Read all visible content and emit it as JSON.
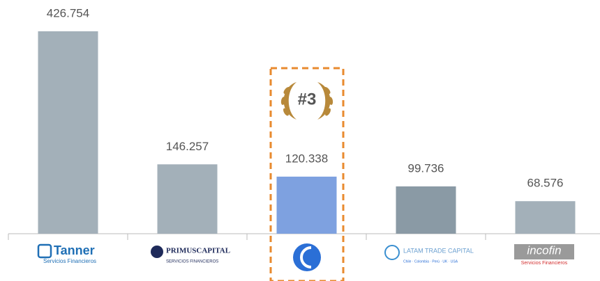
{
  "chart_data": {
    "type": "bar",
    "categories": [
      "Tanner",
      "PRIMUSCAPITAL",
      null,
      "LATAM TRADE CAPITAL",
      "incofin"
    ],
    "category_sublabels": [
      "Servicios Financieros",
      "SERVICIOS FINANCIEROS",
      null,
      "Chile · Colombia · Perú · UK · USA",
      "Servicios Financieros"
    ],
    "values": [
      426754,
      146257,
      120338,
      99736,
      68576
    ],
    "value_labels": [
      "426.754",
      "146.257",
      "120.338",
      "99.736",
      "68.576"
    ],
    "colors": [
      "#a3b0b9",
      "#a3b0b9",
      "#7ea1e0",
      "#8a9aa5",
      "#a3b0b9"
    ],
    "annotation": "#3"
  }
}
